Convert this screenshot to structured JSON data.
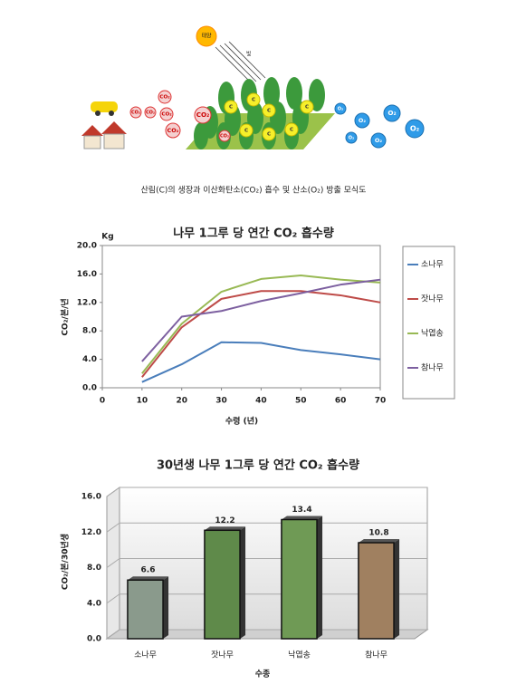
{
  "illustration": {
    "sun": "태양",
    "light": "빛",
    "co2": "CO₂",
    "carbon": "C",
    "o2": "O₂",
    "caption": "산림(C)의 생장과 이산화탄소(CO₂) 흡수 및 산소(O₂) 방출 모식도"
  },
  "chart_data": [
    {
      "type": "line",
      "title": "나무 1그루 당 연간 CO₂ 흡수량",
      "unit": "Kg",
      "ylabel": "CO₂/본/년",
      "xlabel": "수령 (년)",
      "x": [
        10,
        20,
        30,
        40,
        50,
        60,
        70
      ],
      "series": [
        {
          "name": "소나무",
          "color": "#4a7ebb",
          "values": [
            0.8,
            3.3,
            6.4,
            6.3,
            5.3,
            4.7,
            4.0
          ]
        },
        {
          "name": "잣나무",
          "color": "#be4b48",
          "values": [
            1.5,
            8.5,
            12.5,
            13.6,
            13.6,
            13.0,
            12.0
          ]
        },
        {
          "name": "낙엽송",
          "color": "#98b954",
          "values": [
            2.0,
            9.0,
            13.5,
            15.3,
            15.8,
            15.2,
            14.8
          ]
        },
        {
          "name": "참나무",
          "color": "#7d60a0",
          "values": [
            3.7,
            10.0,
            10.8,
            12.2,
            13.3,
            14.5,
            15.2
          ]
        }
      ],
      "xlim": [
        0,
        70
      ],
      "xticks": [
        0,
        10,
        20,
        30,
        40,
        50,
        60,
        70
      ],
      "ylim": [
        0,
        20
      ],
      "yticks": [
        {
          "value": 0,
          "label": "0.0"
        },
        {
          "value": 4,
          "label": "4.0"
        },
        {
          "value": 8,
          "label": "8.0"
        },
        {
          "value": 12,
          "label": "12.0"
        },
        {
          "value": 16,
          "label": "16.0"
        },
        {
          "value": 20,
          "label": "20.0"
        }
      ],
      "grid": false,
      "legend": "right"
    },
    {
      "type": "bar",
      "title": "30년생 나무 1그루 당 연간 CO₂ 흡수량",
      "unit": "Kg",
      "ylabel": "CO₂/본/30년생",
      "xlabel": "수종",
      "categories": [
        "소나무",
        "잣나무",
        "낙엽송",
        "참나무"
      ],
      "values": [
        6.6,
        12.2,
        13.4,
        10.8
      ],
      "colors": [
        "#8a9a8c",
        "#5f8a4a",
        "#6f9a55",
        "#a08060"
      ],
      "ylim": [
        0,
        16
      ],
      "yticks": [
        {
          "value": 0,
          "label": "0.0"
        },
        {
          "value": 4,
          "label": "4.0"
        },
        {
          "value": 8,
          "label": "8.0"
        },
        {
          "value": 12,
          "label": "12.0"
        },
        {
          "value": 16,
          "label": "16.0"
        }
      ],
      "grid": true
    }
  ]
}
